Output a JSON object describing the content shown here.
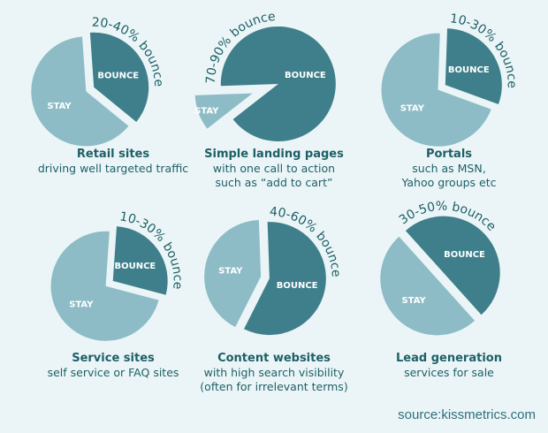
{
  "colors": {
    "bounce": "#3f7f8b",
    "stay": "#8dbcc6",
    "text": "#1d5f66",
    "background": "#ebf5f7"
  },
  "chart_data": {
    "type": "pie",
    "slice_labels": {
      "bounce": "BOUNCE",
      "stay": "STAY"
    },
    "charts": [
      {
        "title": "Retail sites",
        "subtitle": [
          "driving well targeted traffic"
        ],
        "bounce_label": "20-40% bounce",
        "bounce_range": [
          20,
          40
        ],
        "bounce": 0.37,
        "stay": 0.63
      },
      {
        "title": "Simple landing pages",
        "subtitle": [
          "with one call to action",
          "such as “add to cart”"
        ],
        "bounce_label": "70-90% bounce",
        "bounce_range": [
          70,
          90
        ],
        "bounce": 0.9,
        "stay": 0.1
      },
      {
        "title": "Portals",
        "subtitle": [
          "such as MSN,",
          "Yahoo groups etc"
        ],
        "bounce_label": "10-30% bounce",
        "bounce_range": [
          10,
          30
        ],
        "bounce": 0.3,
        "stay": 0.7
      },
      {
        "title": "Service sites",
        "subtitle": [
          "self service or FAQ sites"
        ],
        "bounce_label": "10-30% bounce",
        "bounce_range": [
          10,
          30
        ],
        "bounce": 0.28,
        "stay": 0.72
      },
      {
        "title": "Content websites",
        "subtitle": [
          "with high search visibility",
          "(often for irrelevant terms)"
        ],
        "bounce_label": "40-60% bounce",
        "bounce_range": [
          40,
          60
        ],
        "bounce": 0.58,
        "stay": 0.42
      },
      {
        "title": "Lead generation",
        "subtitle": [
          "services for sale"
        ],
        "bounce_label": "30-50% bounce",
        "bounce_range": [
          30,
          50
        ],
        "bounce": 0.5,
        "stay": 0.5
      }
    ]
  },
  "source": "source:kissmetrics.com"
}
